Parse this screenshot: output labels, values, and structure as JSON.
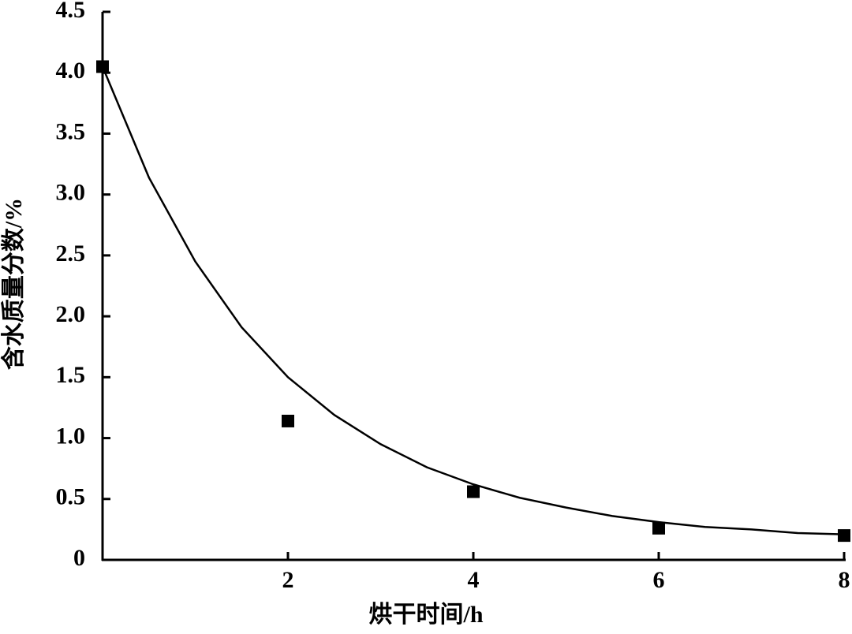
{
  "chart_data": {
    "type": "scatter",
    "x_label": "烘干时间/h",
    "y_label": "含水质量分数/%",
    "xlim": [
      0,
      8
    ],
    "xticks": [
      2,
      4,
      6,
      8
    ],
    "ylim": [
      0,
      4.5
    ],
    "yticks": [
      0,
      0.5,
      {
        "value": 1,
        "label": "1.0"
      },
      1.5,
      {
        "value": 2,
        "label": "2.0"
      },
      2.5,
      {
        "value": 3,
        "label": "3.0"
      },
      3.5,
      {
        "value": 4,
        "label": "4.0"
      },
      4.5
    ],
    "series": [
      {
        "type": "scatter",
        "marker": "square",
        "color": "#000000",
        "x": [
          0,
          2,
          4,
          6,
          8
        ],
        "values": [
          4.05,
          1.14,
          0.56,
          0.26,
          0.2
        ]
      },
      {
        "type": "line",
        "color": "#000000",
        "x": [
          0,
          0.5,
          1,
          1.5,
          2,
          2.5,
          3,
          3.5,
          4,
          4.5,
          5,
          5.5,
          6,
          6.5,
          7,
          7.5,
          8
        ],
        "values": [
          4.05,
          3.14,
          2.45,
          1.91,
          1.5,
          1.19,
          0.95,
          0.76,
          0.62,
          0.51,
          0.43,
          0.36,
          0.31,
          0.27,
          0.25,
          0.22,
          0.21
        ]
      }
    ]
  }
}
